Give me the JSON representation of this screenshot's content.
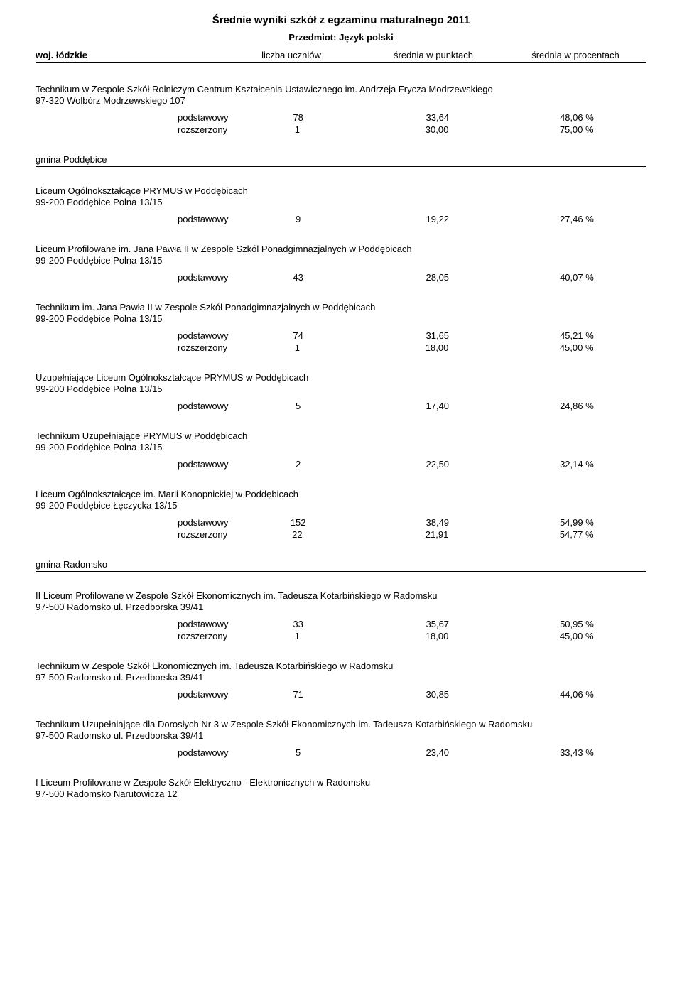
{
  "header": {
    "main_title": "Średnie wyniki szkół z egzaminu maturalnego 2011",
    "subject_label": "Przedmiot: Język polski",
    "woj": "woj. łódzkie",
    "col1": "liczba uczniów",
    "col2": "średnia w punktach",
    "col3": "średnia w procentach"
  },
  "entries": [
    {
      "name": "Technikum w Zespole Szkół Rolniczym Centrum Kształcenia Ustawicznego im. Andrzeja Frycza Modrzewskiego",
      "addr": "97-320 Wolbórz Modrzewskiego 107",
      "rows": [
        {
          "level": "podstawowy",
          "n": "78",
          "pts": "33,64",
          "pct": "48,06 %"
        },
        {
          "level": "rozszerzony",
          "n": "1",
          "pts": "30,00",
          "pct": "75,00 %"
        }
      ],
      "gmina": "gmina Poddębice"
    },
    {
      "name": "Liceum Ogólnokształcące PRYMUS w Poddębicach",
      "addr": "99-200 Poddębice Polna 13/15",
      "rows": [
        {
          "level": "podstawowy",
          "n": "9",
          "pts": "19,22",
          "pct": "27,46 %"
        }
      ]
    },
    {
      "name": "Liceum Profilowane im. Jana Pawła II w Zespole Szkól Ponadgimnazjalnych w Poddębicach",
      "addr": "99-200 Poddębice Polna 13/15",
      "rows": [
        {
          "level": "podstawowy",
          "n": "43",
          "pts": "28,05",
          "pct": "40,07 %"
        }
      ]
    },
    {
      "name": "Technikum im. Jana Pawła II w Zespole Szkół Ponadgimnazjalnych w Poddębicach",
      "addr": "99-200 Poddębice Polna 13/15",
      "rows": [
        {
          "level": "podstawowy",
          "n": "74",
          "pts": "31,65",
          "pct": "45,21 %"
        },
        {
          "level": "rozszerzony",
          "n": "1",
          "pts": "18,00",
          "pct": "45,00 %"
        }
      ]
    },
    {
      "name": "Uzupełniające Liceum Ogólnokształcące PRYMUS w Poddębicach",
      "addr": "99-200 Poddębice Polna 13/15",
      "rows": [
        {
          "level": "podstawowy",
          "n": "5",
          "pts": "17,40",
          "pct": "24,86 %"
        }
      ]
    },
    {
      "name": "Technikum Uzupełniające PRYMUS w Poddębicach",
      "addr": "99-200 Poddębice Polna 13/15",
      "rows": [
        {
          "level": "podstawowy",
          "n": "2",
          "pts": "22,50",
          "pct": "32,14 %"
        }
      ]
    },
    {
      "name": "Liceum Ogólnokształcące im. Marii Konopnickiej w Poddębicach",
      "addr": "99-200 Poddębice Łęczycka 13/15",
      "rows": [
        {
          "level": "podstawowy",
          "n": "152",
          "pts": "38,49",
          "pct": "54,99 %"
        },
        {
          "level": "rozszerzony",
          "n": "22",
          "pts": "21,91",
          "pct": "54,77 %"
        }
      ],
      "gmina": "gmina Radomsko"
    },
    {
      "name": "II Liceum Profilowane w Zespole Szkół Ekonomicznych im. Tadeusza Kotarbińskiego w Radomsku",
      "addr": "97-500 Radomsko ul. Przedborska 39/41",
      "rows": [
        {
          "level": "podstawowy",
          "n": "33",
          "pts": "35,67",
          "pct": "50,95 %"
        },
        {
          "level": "rozszerzony",
          "n": "1",
          "pts": "18,00",
          "pct": "45,00 %"
        }
      ]
    },
    {
      "name": "Technikum w Zespole Szkół Ekonomicznych im. Tadeusza Kotarbińskiego w Radomsku",
      "addr": "97-500 Radomsko ul. Przedborska 39/41",
      "rows": [
        {
          "level": "podstawowy",
          "n": "71",
          "pts": "30,85",
          "pct": "44,06 %"
        }
      ]
    },
    {
      "name": "Technikum Uzupełniające dla Dorosłych Nr 3 w Zespole Szkół Ekonomicznych im. Tadeusza Kotarbińskiego w Radomsku",
      "addr": "97-500 Radomsko ul. Przedborska 39/41",
      "rows": [
        {
          "level": "podstawowy",
          "n": "5",
          "pts": "23,40",
          "pct": "33,43 %"
        }
      ]
    },
    {
      "name": "I Liceum Profilowane w Zespole Szkół Elektryczno - Elektronicznych w Radomsku",
      "addr": "97-500 Radomsko Narutowicza 12",
      "rows": []
    }
  ]
}
